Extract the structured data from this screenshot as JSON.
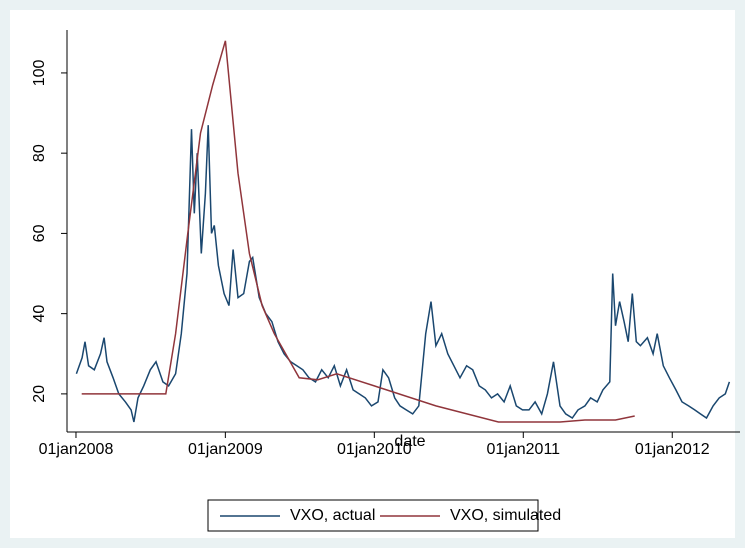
{
  "chart_data": {
    "type": "line",
    "x_label": "date",
    "xlim": [
      "2007-12-10",
      "2012-06-15"
    ],
    "xticks": [
      {
        "value": "2008-01-01",
        "label": "01jan2008"
      },
      {
        "value": "2009-01-01",
        "label": "01jan2009"
      },
      {
        "value": "2010-01-01",
        "label": "01jan2010"
      },
      {
        "value": "2011-01-01",
        "label": "01jan2011"
      },
      {
        "value": "2012-01-01",
        "label": "01jan2012"
      }
    ],
    "ylim": [
      10.5,
      110.7
    ],
    "yticks": [
      20,
      40,
      60,
      80,
      100
    ],
    "legend": "bottom",
    "series": [
      {
        "name": "VXO, actual",
        "color": "#1a476f",
        "x": [
          "2008-01-02",
          "2008-01-16",
          "2008-01-23",
          "2008-02-01",
          "2008-02-15",
          "2008-03-01",
          "2008-03-10",
          "2008-03-17",
          "2008-04-01",
          "2008-04-15",
          "2008-05-01",
          "2008-05-15",
          "2008-05-22",
          "2008-06-01",
          "2008-06-15",
          "2008-07-01",
          "2008-07-15",
          "2008-08-01",
          "2008-08-15",
          "2008-09-01",
          "2008-09-15",
          "2008-09-29",
          "2008-10-10",
          "2008-10-17",
          "2008-10-24",
          "2008-11-03",
          "2008-11-13",
          "2008-11-20",
          "2008-11-28",
          "2008-12-05",
          "2008-12-15",
          "2008-12-29",
          "2009-01-10",
          "2009-01-20",
          "2009-02-01",
          "2009-02-15",
          "2009-03-01",
          "2009-03-09",
          "2009-03-25",
          "2009-04-10",
          "2009-04-25",
          "2009-05-10",
          "2009-05-25",
          "2009-06-10",
          "2009-06-25",
          "2009-07-10",
          "2009-07-25",
          "2009-08-10",
          "2009-08-25",
          "2009-09-10",
          "2009-09-25",
          "2009-10-10",
          "2009-10-25",
          "2009-11-10",
          "2009-11-25",
          "2009-12-10",
          "2009-12-25",
          "2010-01-10",
          "2010-01-22",
          "2010-02-05",
          "2010-02-20",
          "2010-03-05",
          "2010-03-20",
          "2010-04-05",
          "2010-04-20",
          "2010-05-07",
          "2010-05-20",
          "2010-06-01",
          "2010-06-15",
          "2010-06-30",
          "2010-07-15",
          "2010-07-30",
          "2010-08-15",
          "2010-08-30",
          "2010-09-15",
          "2010-09-30",
          "2010-10-15",
          "2010-10-30",
          "2010-11-15",
          "2010-11-30",
          "2010-12-15",
          "2010-12-30",
          "2011-01-15",
          "2011-01-30",
          "2011-02-15",
          "2011-03-01",
          "2011-03-16",
          "2011-04-01",
          "2011-04-15",
          "2011-05-01",
          "2011-05-15",
          "2011-06-01",
          "2011-06-15",
          "2011-07-01",
          "2011-07-15",
          "2011-08-01",
          "2011-08-08",
          "2011-08-15",
          "2011-08-25",
          "2011-09-05",
          "2011-09-15",
          "2011-09-25",
          "2011-10-05",
          "2011-10-15",
          "2011-11-01",
          "2011-11-15",
          "2011-11-25",
          "2011-12-10",
          "2011-12-25",
          "2012-01-10",
          "2012-01-25",
          "2012-02-10",
          "2012-02-25",
          "2012-03-10",
          "2012-03-25",
          "2012-04-10",
          "2012-04-25",
          "2012-05-10",
          "2012-05-20"
        ],
        "values": [
          25,
          29,
          33,
          27,
          26,
          30,
          34,
          28,
          24,
          20,
          18,
          16,
          13,
          19,
          22,
          26,
          28,
          23,
          22,
          25,
          35,
          50,
          86,
          65,
          80,
          55,
          70,
          87,
          60,
          62,
          52,
          45,
          42,
          56,
          44,
          45,
          53,
          54,
          44,
          40,
          38,
          33,
          30,
          28,
          27,
          26,
          24,
          23,
          26,
          24,
          27,
          22,
          26,
          21,
          20,
          19,
          17,
          18,
          26,
          24,
          19,
          17,
          16,
          15,
          17,
          35,
          43,
          32,
          35,
          30,
          27,
          24,
          27,
          26,
          22,
          21,
          19,
          20,
          18,
          22,
          17,
          16,
          16,
          18,
          15,
          20,
          28,
          17,
          15,
          14,
          16,
          17,
          19,
          18,
          21,
          23,
          50,
          37,
          43,
          38,
          33,
          45,
          33,
          32,
          34,
          30,
          35,
          27,
          24,
          21,
          18,
          17,
          16,
          15,
          14,
          17,
          19,
          20,
          23
        ]
      },
      {
        "name": "VXO, simulated",
        "color": "#90353b",
        "x": [
          "2008-01-15",
          "2008-08-08",
          "2008-09-01",
          "2008-10-01",
          "2008-11-01",
          "2008-12-01",
          "2009-01-01",
          "2009-02-01",
          "2009-03-01",
          "2009-04-01",
          "2009-05-01",
          "2009-07-01",
          "2009-08-15",
          "2009-10-01",
          "2010-01-01",
          "2010-06-01",
          "2010-11-01",
          "2011-04-01",
          "2011-06-01",
          "2011-08-15",
          "2011-10-01"
        ],
        "values": [
          20,
          20,
          35,
          60,
          85,
          97,
          108,
          75,
          55,
          42,
          35,
          24,
          23.5,
          25,
          22,
          17,
          13,
          13,
          13.5,
          13.5,
          14.5
        ]
      }
    ]
  }
}
